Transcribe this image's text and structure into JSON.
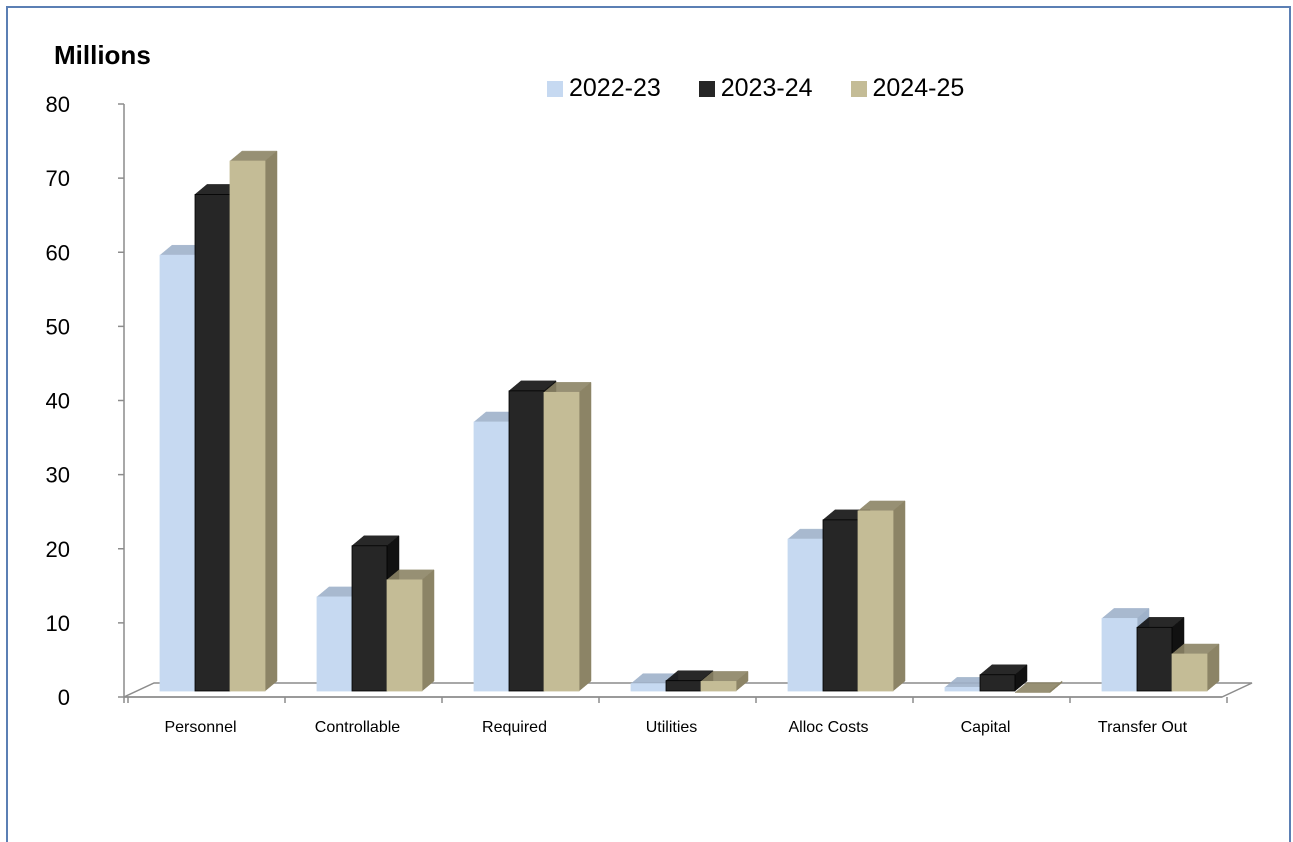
{
  "chart_data": {
    "type": "bar",
    "unit_label": "Millions",
    "categories": [
      "Personnel",
      "Controllable",
      "Required",
      "Utilities",
      "Alloc Costs",
      "Capital",
      "Transfer Out"
    ],
    "series": [
      {
        "name": "2022-23",
        "values": [
          59.6,
          13.5,
          37.1,
          1.8,
          21.3,
          1.3,
          10.6
        ],
        "color": "#c6d9f1",
        "side": "#9fb2ca"
      },
      {
        "name": "2023-24",
        "values": [
          67.8,
          20.4,
          41.3,
          2.2,
          23.9,
          3.0,
          9.4
        ],
        "color": "#262626",
        "side": "#111111"
      },
      {
        "name": "2024-25",
        "values": [
          72.3,
          15.8,
          41.1,
          2.1,
          25.1,
          0.6,
          5.8
        ],
        "color": "#c4bc96",
        "side": "#8c8466"
      }
    ],
    "yticks": [
      0,
      10,
      20,
      30,
      40,
      50,
      60,
      70,
      80
    ],
    "ylim": [
      0,
      80
    ],
    "legend_position": "top",
    "grid": false
  }
}
